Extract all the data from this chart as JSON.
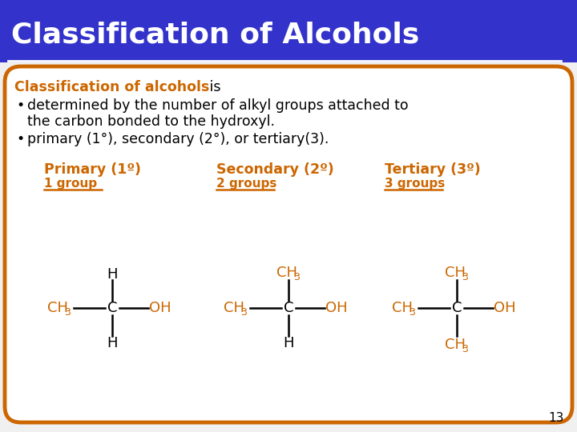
{
  "title": "Classification of Alcohols",
  "title_bg": "#3333cc",
  "title_color": "#ffffff",
  "title_fontsize": 26,
  "body_bg": "#ffffff",
  "border_color": "#cc6600",
  "orange_color": "#cc6600",
  "black_color": "#000000",
  "slide_bg": "#f0f0f0",
  "heading_bold": "Classification of alcohols",
  "heading_normal": " is",
  "bullet1_line1": "determined by the number of alkyl groups attached to",
  "bullet1_line2": "the carbon bonded to the hydroxyl.",
  "bullet2": "primary (1°), secondary (2°), or tertiary(3).",
  "primary_title": "Primary (1º)",
  "primary_sub": "1 group",
  "secondary_title": "Secondary (2º)",
  "secondary_sub": "2 groups",
  "tertiary_title": "Tertiary (3º)",
  "tertiary_sub": "3 groups",
  "page_number": "13"
}
